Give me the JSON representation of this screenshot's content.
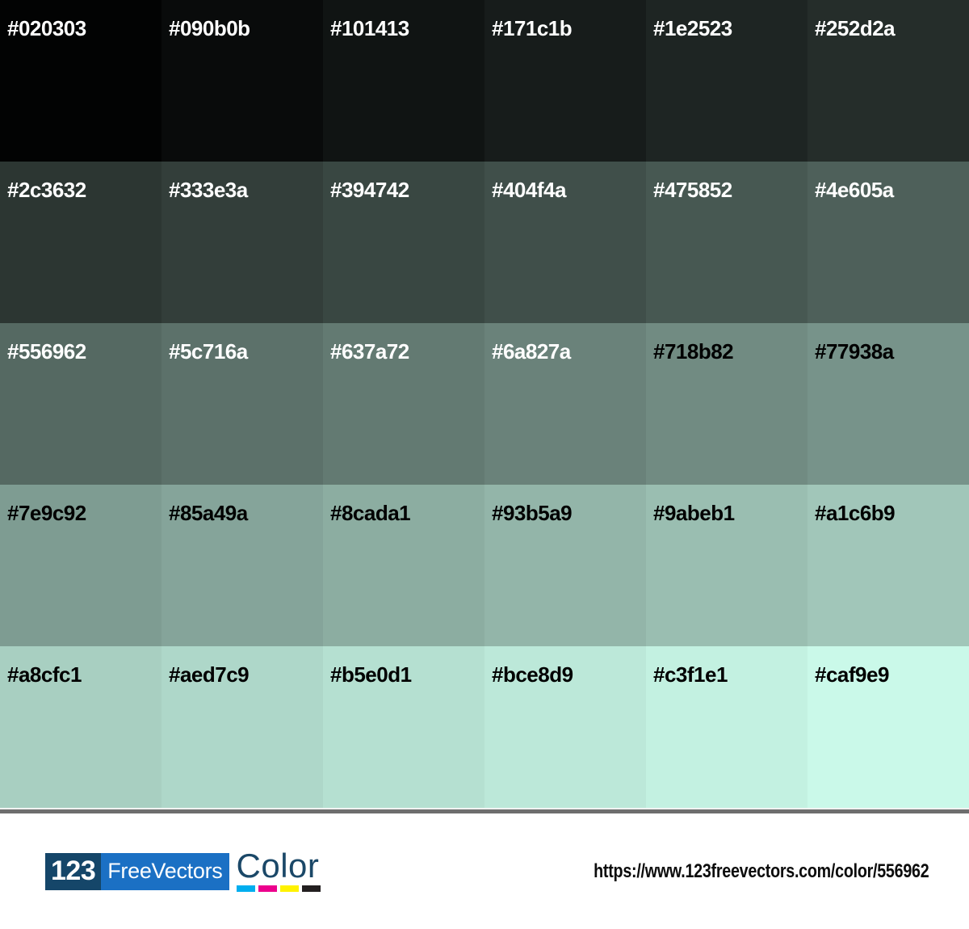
{
  "palette": {
    "columns": 6,
    "rows": 5,
    "swatches": [
      {
        "hex": "#020303",
        "label": "#020303",
        "text_color": "#ffffff"
      },
      {
        "hex": "#090b0b",
        "label": "#090b0b",
        "text_color": "#ffffff"
      },
      {
        "hex": "#101413",
        "label": "#101413",
        "text_color": "#ffffff"
      },
      {
        "hex": "#171c1b",
        "label": "#171c1b",
        "text_color": "#ffffff"
      },
      {
        "hex": "#1e2523",
        "label": "#1e2523",
        "text_color": "#ffffff"
      },
      {
        "hex": "#252d2a",
        "label": "#252d2a",
        "text_color": "#ffffff"
      },
      {
        "hex": "#2c3632",
        "label": "#2c3632",
        "text_color": "#ffffff"
      },
      {
        "hex": "#333e3a",
        "label": "#333e3a",
        "text_color": "#ffffff"
      },
      {
        "hex": "#394742",
        "label": "#394742",
        "text_color": "#ffffff"
      },
      {
        "hex": "#404f4a",
        "label": "#404f4a",
        "text_color": "#ffffff"
      },
      {
        "hex": "#475852",
        "label": "#475852",
        "text_color": "#ffffff"
      },
      {
        "hex": "#4e605a",
        "label": "#4e605a",
        "text_color": "#ffffff"
      },
      {
        "hex": "#556962",
        "label": "#556962",
        "text_color": "#ffffff"
      },
      {
        "hex": "#5c716a",
        "label": "#5c716a",
        "text_color": "#ffffff"
      },
      {
        "hex": "#637a72",
        "label": "#637a72",
        "text_color": "#ffffff"
      },
      {
        "hex": "#6a827a",
        "label": "#6a827a",
        "text_color": "#ffffff"
      },
      {
        "hex": "#718b82",
        "label": "#718b82",
        "text_color": "#000000"
      },
      {
        "hex": "#77938a",
        "label": "#77938a",
        "text_color": "#000000"
      },
      {
        "hex": "#7e9c92",
        "label": "#7e9c92",
        "text_color": "#000000"
      },
      {
        "hex": "#85a49a",
        "label": "#85a49a",
        "text_color": "#000000"
      },
      {
        "hex": "#8cada1",
        "label": "#8cada1",
        "text_color": "#000000"
      },
      {
        "hex": "#93b5a9",
        "label": "#93b5a9",
        "text_color": "#000000"
      },
      {
        "hex": "#9abeb1",
        "label": "#9abeb1",
        "text_color": "#000000"
      },
      {
        "hex": "#a1c6b9",
        "label": "#a1c6b9",
        "text_color": "#000000"
      },
      {
        "hex": "#a8cfc1",
        "label": "#a8cfc1",
        "text_color": "#000000"
      },
      {
        "hex": "#aed7c9",
        "label": "#aed7c9",
        "text_color": "#000000"
      },
      {
        "hex": "#b5e0d1",
        "label": "#b5e0d1",
        "text_color": "#000000"
      },
      {
        "hex": "#bce8d9",
        "label": "#bce8d9",
        "text_color": "#000000"
      },
      {
        "hex": "#c3f1e1",
        "label": "#c3f1e1",
        "text_color": "#000000"
      },
      {
        "hex": "#caf9e9",
        "label": "#caf9e9",
        "text_color": "#000000"
      }
    ]
  },
  "footer": {
    "logo": {
      "number": "123",
      "name": "FreeVectors",
      "suffix": "Color",
      "number_bg": "#154669",
      "name_bg": "#1b70c4",
      "suffix_color": "#1b4868",
      "cmyk_colors": [
        "#00aeef",
        "#ec008c",
        "#fff200",
        "#231f20"
      ]
    },
    "url": "https://www.123freevectors.com/color/556962"
  }
}
